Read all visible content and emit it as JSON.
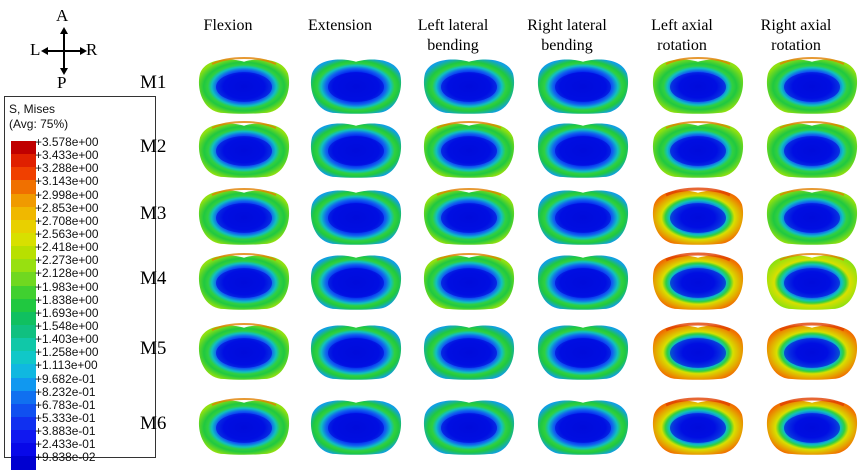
{
  "compass": {
    "up": "A",
    "down": "P",
    "left": "L",
    "right": "R"
  },
  "legend": {
    "title": "S, Mises",
    "subtitle": "(Avg: 75%)",
    "values": [
      "+3.578e+00",
      "+3.433e+00",
      "+3.288e+00",
      "+3.143e+00",
      "+2.998e+00",
      "+2.853e+00",
      "+2.708e+00",
      "+2.563e+00",
      "+2.418e+00",
      "+2.273e+00",
      "+2.128e+00",
      "+1.983e+00",
      "+1.838e+00",
      "+1.693e+00",
      "+1.548e+00",
      "+1.403e+00",
      "+1.258e+00",
      "+1.113e+00",
      "+9.682e-01",
      "+8.232e-01",
      "+6.783e-01",
      "+5.333e-01",
      "+3.883e-01",
      "+2.433e-01",
      "+9.838e-02"
    ],
    "colors": [
      "#c00000",
      "#e02000",
      "#f04000",
      "#f07000",
      "#f09a00",
      "#f0b800",
      "#e8d000",
      "#d8e000",
      "#b8e000",
      "#98e010",
      "#70d820",
      "#40d030",
      "#20c840",
      "#10c060",
      "#10c080",
      "#10c8a8",
      "#10c8c8",
      "#10b8e0",
      "#1098f0",
      "#1070f0",
      "#1050f0",
      "#1030f0",
      "#1018f0",
      "#0808e8",
      "#0000d0"
    ]
  },
  "columns": [
    {
      "line1": "Flexion",
      "line2": ""
    },
    {
      "line1": "Extension",
      "line2": ""
    },
    {
      "line1": "Left lateral",
      "line2": "bending"
    },
    {
      "line1": "Right lateral",
      "line2": "bending"
    },
    {
      "line1": "Left axial",
      "line2": "rotation"
    },
    {
      "line1": "Right axial",
      "line2": "rotation"
    }
  ],
  "rows": [
    "M1",
    "M2",
    "M3",
    "M4",
    "M5",
    "M6"
  ],
  "stress_levels": [
    [
      0.35,
      0.15,
      0.3,
      0.15,
      0.5,
      0.45
    ],
    [
      0.38,
      0.15,
      0.32,
      0.15,
      0.48,
      0.45
    ],
    [
      0.35,
      0.15,
      0.32,
      0.18,
      0.65,
      0.48
    ],
    [
      0.37,
      0.15,
      0.32,
      0.18,
      0.7,
      0.55
    ],
    [
      0.36,
      0.15,
      0.3,
      0.18,
      0.78,
      0.75
    ],
    [
      0.36,
      0.15,
      0.3,
      0.18,
      0.65,
      0.65
    ]
  ]
}
